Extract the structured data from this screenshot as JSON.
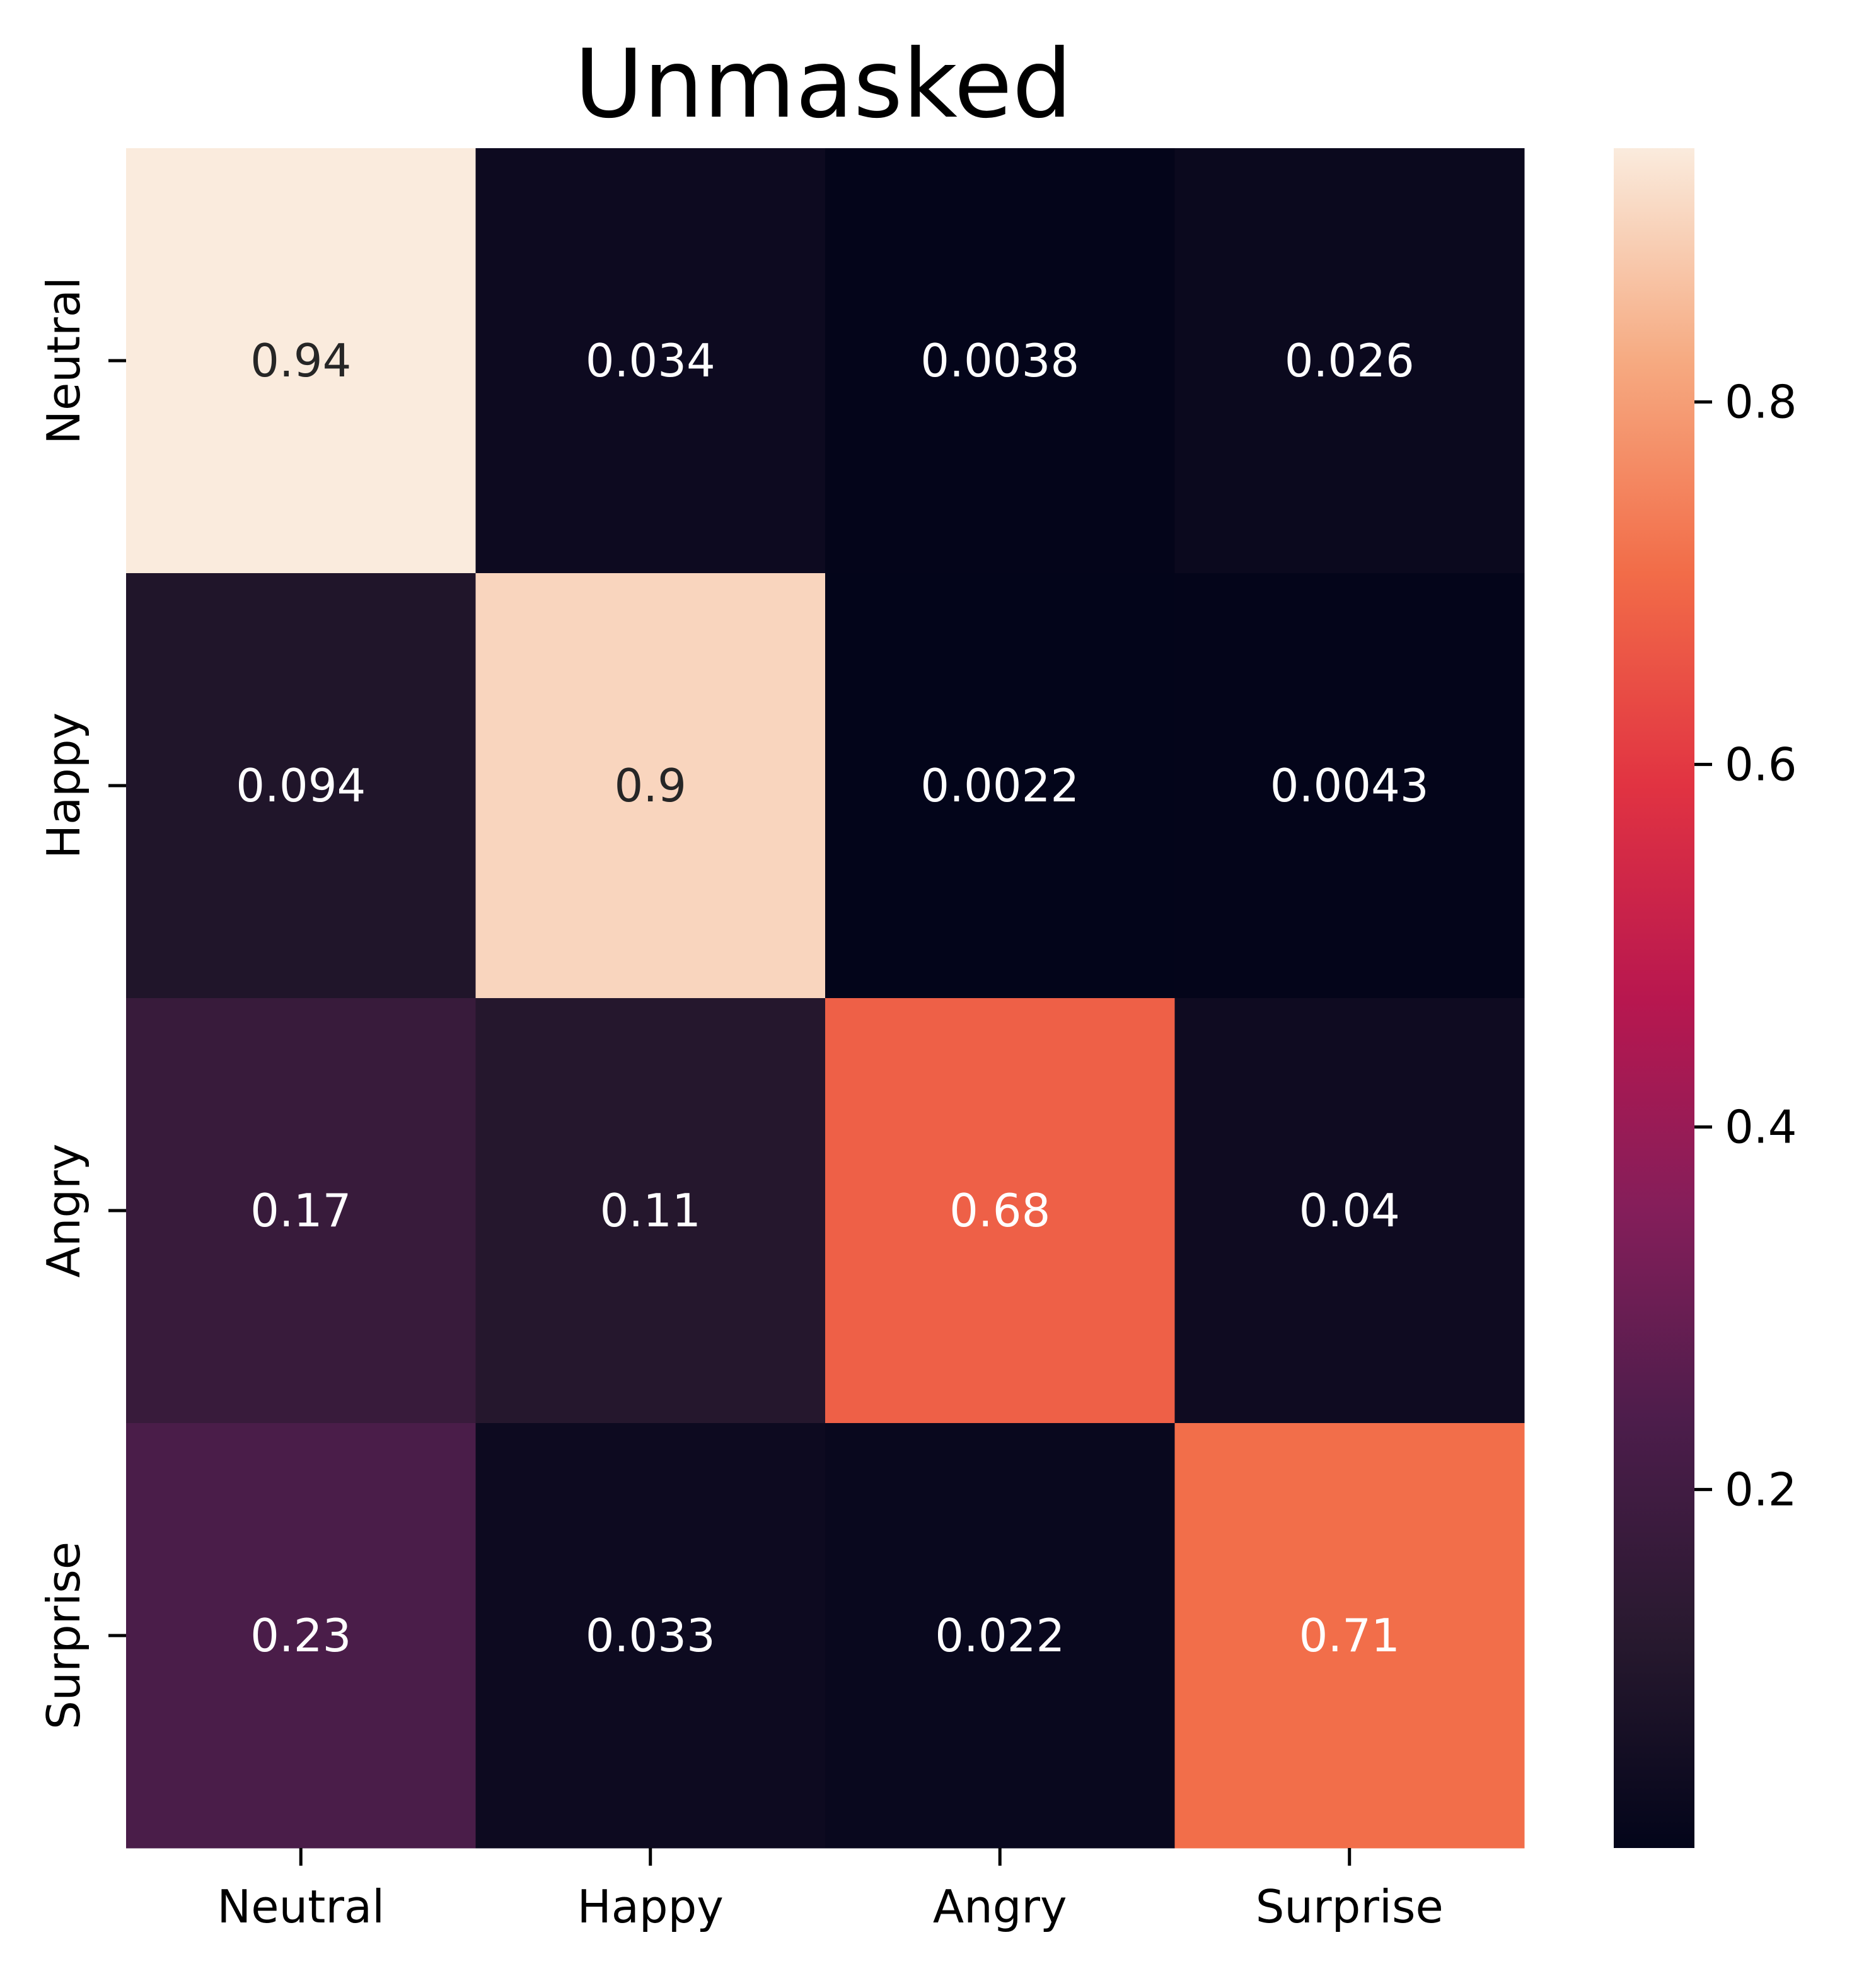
{
  "chart_data": {
    "type": "heatmap",
    "title": "Unmasked",
    "xlabel": "",
    "ylabel": "",
    "x_categories": [
      "Neutral",
      "Happy",
      "Angry",
      "Surprise"
    ],
    "y_categories": [
      "Neutral",
      "Happy",
      "Angry",
      "Surprise"
    ],
    "values": [
      [
        0.94,
        0.034,
        0.0038,
        0.026
      ],
      [
        0.094,
        0.9,
        0.0022,
        0.0043
      ],
      [
        0.17,
        0.11,
        0.68,
        0.04
      ],
      [
        0.23,
        0.033,
        0.022,
        0.71
      ]
    ],
    "value_labels": [
      [
        "0.94",
        "0.034",
        "0.0038",
        "0.026"
      ],
      [
        "0.094",
        "0.9",
        "0.0022",
        "0.0043"
      ],
      [
        "0.17",
        "0.11",
        "0.68",
        "0.04"
      ],
      [
        "0.23",
        "0.033",
        "0.022",
        "0.71"
      ]
    ],
    "colorbar": {
      "colormap": "rocket",
      "vmin": 0.0022,
      "vmax": 0.94,
      "ticks": [
        0.2,
        0.4,
        0.6,
        0.8
      ],
      "tick_labels": [
        "0.2",
        "0.4",
        "0.6",
        "0.8"
      ]
    },
    "colors": {
      "annotation_dark": "#262626",
      "annotation_light": "#ffffff"
    }
  }
}
